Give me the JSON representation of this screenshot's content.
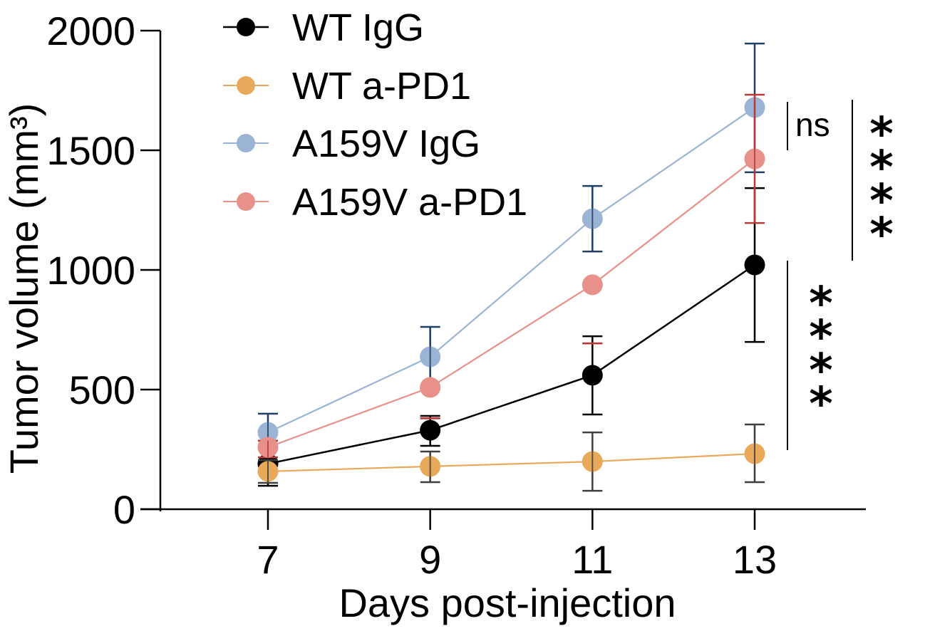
{
  "chart_data": {
    "type": "line",
    "title": "",
    "xlabel": "Days post-injection",
    "ylabel": "Tumor volume (mm³)",
    "x": [
      7,
      9,
      11,
      13
    ],
    "xticks": [
      "7",
      "9",
      "11",
      "13"
    ],
    "yticks": [
      "0",
      "500",
      "1000",
      "1500",
      "2000"
    ],
    "ylim": [
      0,
      2000
    ],
    "xlim": [
      5.67,
      14.4
    ],
    "grid": false,
    "legend_position": "top-left",
    "series": [
      {
        "name": "WT IgG",
        "color": "#000000",
        "errcolor": "#000000",
        "values": [
          190,
          330,
          560,
          1021
        ],
        "err_upper": [
          286,
          390,
          723,
          1342
        ],
        "err_lower": [
          98,
          265,
          396,
          699
        ]
      },
      {
        "name": "WT a-PD1",
        "color": "#E8A95A",
        "errcolor": "#3f3f3f",
        "values": [
          158,
          179,
          199,
          232
        ],
        "err_upper": [
          205,
          241,
          321,
          354
        ],
        "err_lower": [
          110,
          113,
          77,
          113
        ]
      },
      {
        "name": "A159V IgG",
        "color": "#9BB3D4",
        "errcolor": "#1f3f63",
        "values": [
          321,
          637,
          1214,
          1679
        ],
        "err_upper": [
          399,
          762,
          1351,
          1946
        ],
        "err_lower": [
          217,
          509,
          1077,
          1408
        ]
      },
      {
        "name": "A159V a-PD1",
        "color": "#E8918A",
        "errcolor": "#b83a3a",
        "values": [
          259,
          509,
          938,
          1464
        ],
        "err_upper": [
          286,
          380,
          693,
          1732
        ],
        "err_lower": [
          217,
          380,
          693,
          1196
        ]
      }
    ],
    "annotations": [
      {
        "text": "ns",
        "between": [
          "A159V IgG",
          "A159V a-PD1"
        ],
        "at_x": 13
      },
      {
        "text": "****",
        "between": [
          "A159V IgG",
          "WT IgG"
        ],
        "at_x": 13
      },
      {
        "text": "****",
        "between": [
          "WT IgG",
          "WT a-PD1"
        ],
        "at_x": 13
      }
    ]
  }
}
